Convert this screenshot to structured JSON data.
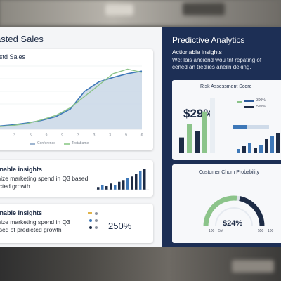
{
  "left": {
    "title": "asted Sales",
    "chart_card": {
      "title": "astd Sales",
      "x_ticks": [
        "9",
        "3",
        "5",
        "9",
        "9",
        "3",
        "3",
        "3",
        "9",
        "6"
      ],
      "legend": [
        {
          "label": "Conference",
          "color": "#9fb6d1"
        },
        {
          "label": "Testabame",
          "color": "#a4d4a0"
        }
      ]
    },
    "insight1": {
      "title": "onable insights",
      "line1": "mize marketing spend in Q3 based",
      "line2": "ected growth"
    },
    "insight2": {
      "title": "onable Insights",
      "line1": "mize marketing spend in Q3",
      "line2": "ased of predieted growth",
      "percent": "250%"
    }
  },
  "right": {
    "title": "Predictive Analytics",
    "subtitle": "Actionable insights",
    "text_line1": "We: lais aneiend wou tnt repating of",
    "text_line2": "cened an trediies aneiln deking.",
    "risk": {
      "title": "Risk Assessment Score",
      "percent": "$29%",
      "legend": [
        {
          "label": "300%",
          "color": "#2b5a9a"
        },
        {
          "label": "520%",
          "color": "#1d2b45"
        }
      ]
    },
    "churn": {
      "title": "Customer Churn Probability",
      "percent": "$24%",
      "ticks": [
        "100",
        "5M",
        "550",
        "100"
      ]
    }
  },
  "colors": {
    "navy": "#1d2f55",
    "area_fill": "#c9d7e6",
    "blue_line": "#3e78b8",
    "green_line": "#8cc48a",
    "bar_navy": "#1d2b45",
    "bar_green": "#8cc48a",
    "bar_blue": "#3e78b8"
  },
  "chart_data": [
    {
      "type": "area",
      "series": [
        {
          "values": [
            5,
            7,
            10,
            14,
            20,
            32,
            60,
            75,
            82,
            88,
            92
          ]
        },
        {
          "values": [
            4,
            6,
            9,
            15,
            22,
            34,
            52,
            70,
            88,
            95,
            90
          ]
        }
      ]
    },
    {
      "type": "bar",
      "values": [
        28,
        52,
        40,
        74,
        98
      ]
    },
    {
      "type": "bar",
      "values": [
        3,
        5,
        4,
        7,
        5,
        9,
        11,
        13,
        15,
        18,
        21,
        24
      ]
    }
  ]
}
